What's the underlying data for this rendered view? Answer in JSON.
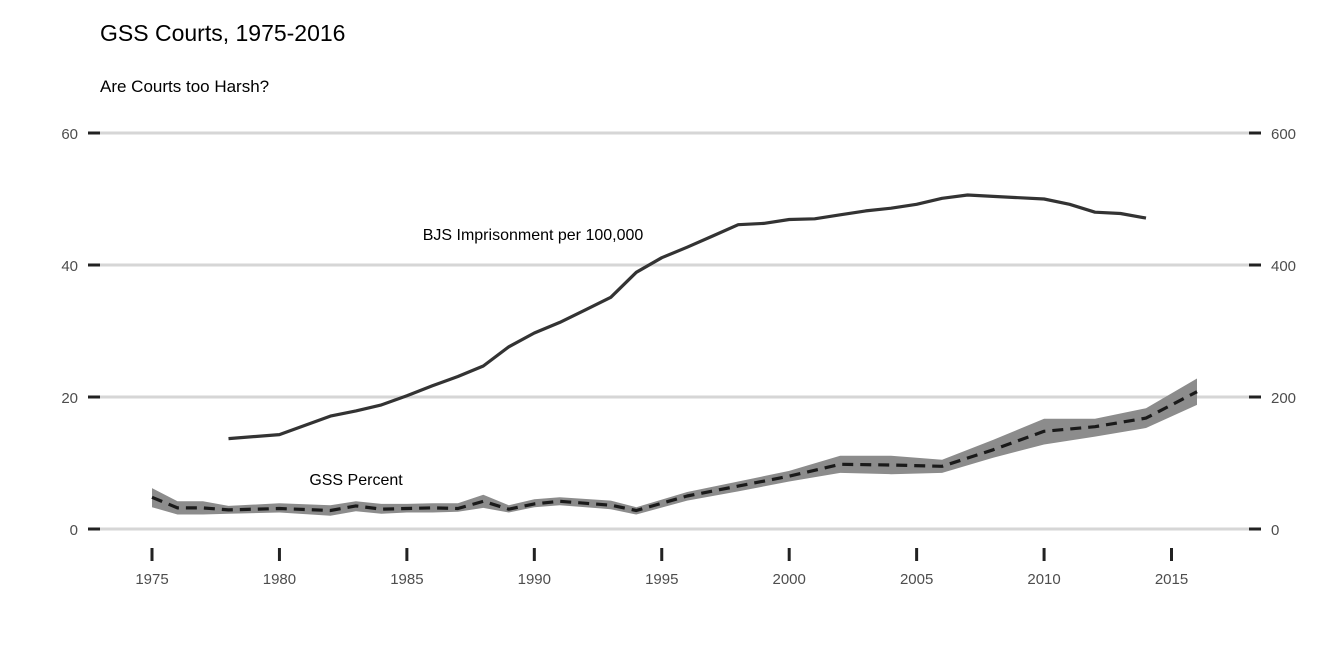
{
  "chart_data": {
    "type": "line",
    "title": "GSS Courts, 1975-2016",
    "subtitle": "Are Courts too Harsh?",
    "x_ticks": [
      1975,
      1980,
      1985,
      1990,
      1995,
      2000,
      2005,
      2010,
      2015
    ],
    "xlim": [
      1975,
      2016
    ],
    "y_left_ticks": [
      0,
      20,
      40,
      60
    ],
    "ylim_left": [
      0,
      60
    ],
    "y_right_ticks": [
      0,
      200,
      400,
      600
    ],
    "ylim_right": [
      0,
      600
    ],
    "grid": "horizontal",
    "annotations": [
      {
        "text": "BJS Imprisonment per 100,000"
      },
      {
        "text": "GSS Percent"
      }
    ],
    "series": [
      {
        "axis": "right",
        "style": "solid",
        "x": [
          1978,
          1980,
          1982,
          1983,
          1984,
          1985,
          1986,
          1987,
          1988,
          1989,
          1990,
          1991,
          1992,
          1993,
          1994,
          1995,
          1996,
          1997,
          1998,
          1999,
          2000,
          2001,
          2002,
          2003,
          2004,
          2005,
          2006,
          2007,
          2008,
          2009,
          2010,
          2011,
          2012,
          2013,
          2014
        ],
        "y": [
          137,
          143,
          171,
          179,
          188,
          202,
          217,
          231,
          247,
          276,
          297,
          313,
          332,
          351,
          389,
          411,
          427,
          444,
          461,
          463,
          469,
          470,
          476,
          482,
          486,
          492,
          501,
          506,
          504,
          502,
          500,
          492,
          480,
          478,
          471
        ]
      },
      {
        "axis": "left",
        "style": "dashed",
        "x": [
          1975,
          1976,
          1977,
          1978,
          1980,
          1982,
          1983,
          1984,
          1985,
          1986,
          1987,
          1988,
          1989,
          1990,
          1991,
          1993,
          1994,
          1996,
          1998,
          2000,
          2002,
          2004,
          2006,
          2008,
          2010,
          2012,
          2014,
          2016
        ],
        "y": [
          4.8,
          3.2,
          3.2,
          2.9,
          3.1,
          2.8,
          3.5,
          3.0,
          3.1,
          3.2,
          3.1,
          4.2,
          3.0,
          3.8,
          4.2,
          3.6,
          2.8,
          5.0,
          6.5,
          8.0,
          9.8,
          9.7,
          9.5,
          12.0,
          14.8,
          15.5,
          16.8,
          20.8
        ],
        "lower": [
          3.3,
          2.2,
          2.2,
          2.3,
          2.5,
          2.0,
          2.7,
          2.3,
          2.5,
          2.5,
          2.6,
          3.2,
          2.5,
          3.3,
          3.6,
          3.0,
          2.2,
          4.3,
          5.7,
          7.2,
          8.5,
          8.3,
          8.5,
          10.8,
          12.8,
          14.0,
          15.3,
          18.8
        ],
        "upper": [
          6.2,
          4.2,
          4.2,
          3.5,
          3.9,
          3.6,
          4.2,
          3.8,
          3.8,
          3.9,
          3.9,
          5.2,
          3.6,
          4.5,
          4.8,
          4.3,
          3.3,
          5.6,
          7.2,
          8.8,
          11.1,
          11.1,
          10.5,
          13.5,
          16.7,
          16.7,
          18.3,
          22.8
        ]
      }
    ]
  },
  "colors": {
    "line": "#333333",
    "dash": "#1a1a1a",
    "band": "#8c8c8c",
    "grid": "#d6d6d6",
    "tick_mark": "#222222",
    "tick_label": "#4d4d4d"
  }
}
